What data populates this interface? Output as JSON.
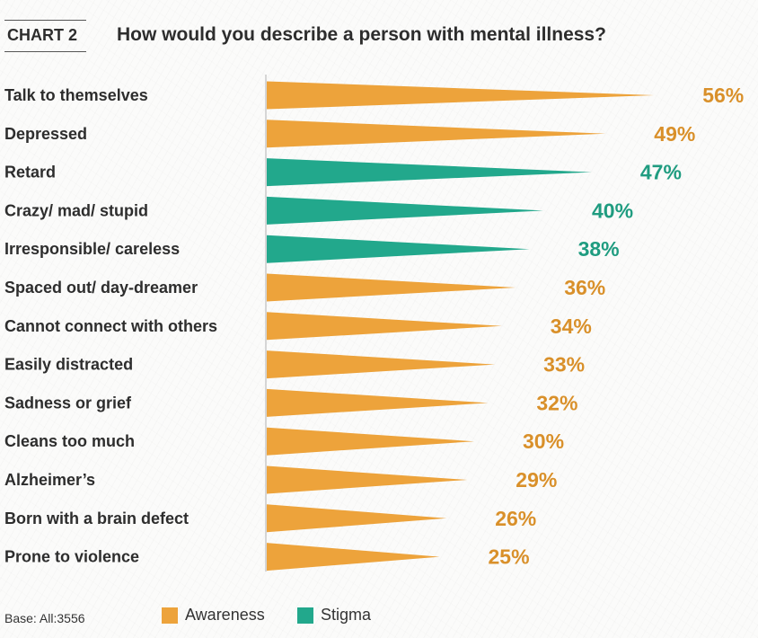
{
  "header": {
    "tag": "CHART 2",
    "title": "How would you describe a person with mental illness?"
  },
  "footer": {
    "base": "Base: All:3556"
  },
  "legend": [
    {
      "label": "Awareness",
      "color": "#eda33b"
    },
    {
      "label": "Stigma",
      "color": "#22a88c"
    }
  ],
  "chart_data": {
    "type": "bar",
    "orientation": "horizontal",
    "title": "How would you describe a person with mental illness?",
    "unit": "%",
    "xlim": [
      0,
      56
    ],
    "categories": [
      "Talk to themselves",
      "Depressed",
      "Retard",
      "Crazy/ mad/ stupid",
      "Irresponsible/ careless",
      "Spaced out/ day-dreamer",
      "Cannot connect with others",
      "Easily distracted",
      "Sadness or grief",
      "Cleans too much",
      "Alzheimer’s",
      "Born with a brain defect",
      "Prone to violence"
    ],
    "values": [
      56,
      49,
      47,
      40,
      38,
      36,
      34,
      33,
      32,
      30,
      29,
      26,
      25
    ],
    "value_labels": [
      "56%",
      "49%",
      "47%",
      "40%",
      "38%",
      "36%",
      "34%",
      "33%",
      "32%",
      "30%",
      "29%",
      "26%",
      "25%"
    ],
    "groups": [
      "Awareness",
      "Awareness",
      "Stigma",
      "Stigma",
      "Stigma",
      "Awareness",
      "Awareness",
      "Awareness",
      "Awareness",
      "Awareness",
      "Awareness",
      "Awareness",
      "Awareness"
    ],
    "colors": {
      "Awareness": "#eda33b",
      "Stigma": "#22a88c"
    },
    "value_label_colors": {
      "Awareness": "#d9902a",
      "Stigma": "#1f9c80"
    }
  }
}
